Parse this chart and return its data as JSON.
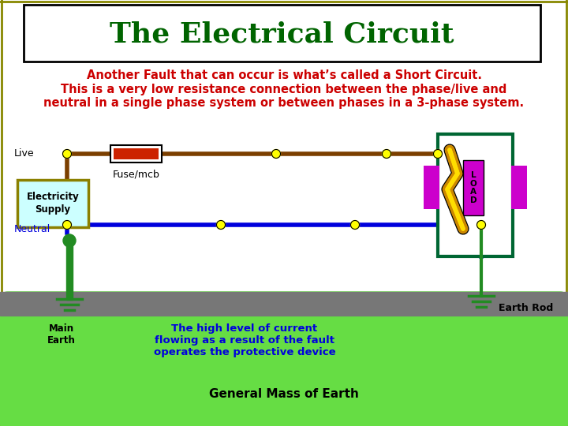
{
  "title": "The Electrical Circuit",
  "subtitle1": "Another Fault that can occur is what’s called a Short Circuit.",
  "subtitle2": "This is a very low resistance connection between the phase/live and\nneutral in a single phase system or between phases in a 3-phase system.",
  "title_color": "#006400",
  "subtitle1_color": "#cc0000",
  "subtitle2_color": "#cc0000",
  "bg_color": "#ffffff",
  "live_color": "#7B3F00",
  "neutral_color": "#0000dd",
  "dot_color": "#ffff00",
  "ground_color": "#228B22",
  "earth_ground_color": "#66dd44",
  "dirt_color": "#777777",
  "load_box_color": "#006633",
  "load_fill_color": "#cc00cc",
  "supply_box_color": "#8B8000",
  "supply_fill_color": "#ccffff",
  "fuse_color": "#cc2200",
  "spark_color1": "#cc8800",
  "spark_color2": "#ffdd00",
  "border_outer_color": "#888800",
  "border_inner_color": "#000000"
}
